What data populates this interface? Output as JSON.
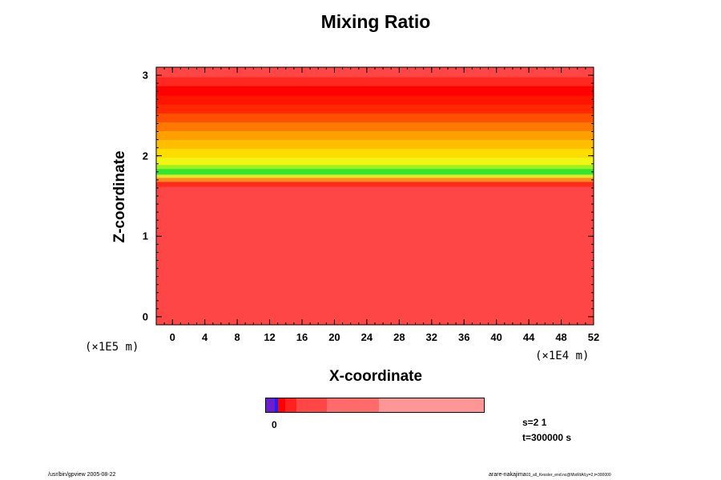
{
  "chart_data": {
    "type": "heatmap",
    "title": "Mixing Ratio",
    "xlabel": "X-coordinate",
    "ylabel": "Z-coordinate",
    "x_scale_label": "(×1E4 m)",
    "y_scale_label": "(×1E5 m)",
    "xlim": [
      -2,
      52
    ],
    "ylim": [
      -0.1,
      3.1
    ],
    "x_ticks": [
      "0",
      "4",
      "8",
      "12",
      "16",
      "20",
      "24",
      "28",
      "32",
      "36",
      "40",
      "44",
      "48",
      "52"
    ],
    "y_ticks": [
      "0",
      "1",
      "2",
      "3"
    ],
    "x_tick_values": [
      0,
      4,
      8,
      12,
      16,
      20,
      24,
      28,
      32,
      36,
      40,
      44,
      48,
      52
    ],
    "y_tick_values": [
      0,
      1,
      2,
      3
    ],
    "x_minor_step": 1,
    "y_minor_step": 0.1,
    "layers": [
      {
        "z0": -0.1,
        "z1": 1.62,
        "color": "#ff4646"
      },
      {
        "z0": 1.62,
        "z1": 1.68,
        "color": "#ff2a1e"
      },
      {
        "z0": 1.68,
        "z1": 1.73,
        "color": "#ff8c1e"
      },
      {
        "z0": 1.73,
        "z1": 1.77,
        "color": "#e6e628"
      },
      {
        "z0": 1.77,
        "z1": 1.84,
        "color": "#32e632"
      },
      {
        "z0": 1.84,
        "z1": 1.89,
        "color": "#a0f01e"
      },
      {
        "z0": 1.89,
        "z1": 1.98,
        "color": "#f0f514"
      },
      {
        "z0": 1.98,
        "z1": 2.09,
        "color": "#ffdc00"
      },
      {
        "z0": 2.09,
        "z1": 2.2,
        "color": "#ffbe00"
      },
      {
        "z0": 2.2,
        "z1": 2.31,
        "color": "#ffa000"
      },
      {
        "z0": 2.31,
        "z1": 2.42,
        "color": "#ff7800"
      },
      {
        "z0": 2.42,
        "z1": 2.53,
        "color": "#ff5000"
      },
      {
        "z0": 2.53,
        "z1": 2.64,
        "color": "#ff2800"
      },
      {
        "z0": 2.64,
        "z1": 2.75,
        "color": "#ff1400"
      },
      {
        "z0": 2.75,
        "z1": 2.87,
        "color": "#ff0000"
      },
      {
        "z0": 2.87,
        "z1": 2.98,
        "color": "#ff2820"
      },
      {
        "z0": 2.98,
        "z1": 3.1,
        "color": "#ff4646"
      }
    ],
    "colorbar": {
      "segments": [
        {
          "color": "#6a1ecc",
          "frac": 0.04
        },
        {
          "color": "#1e1eff",
          "frac": 0.015
        },
        {
          "color": "#ff0000",
          "frac": 0.035
        },
        {
          "color": "#ff2020",
          "frac": 0.05
        },
        {
          "color": "#ff4646",
          "frac": 0.14
        },
        {
          "color": "#ff6a6a",
          "frac": 0.24
        },
        {
          "color": "#ff9696",
          "frac": 0.48
        }
      ],
      "zero_label": "0"
    }
  },
  "meta": {
    "s": "s=2 1",
    "t": "t=300000 s"
  },
  "footer": {
    "left": "/usr/bin/gpview 2005-08-22",
    "right_main": "arare-nakajima",
    "right_small": "03_all_Kessler_end.nc@MixRtAll,y=2,t=300000"
  }
}
